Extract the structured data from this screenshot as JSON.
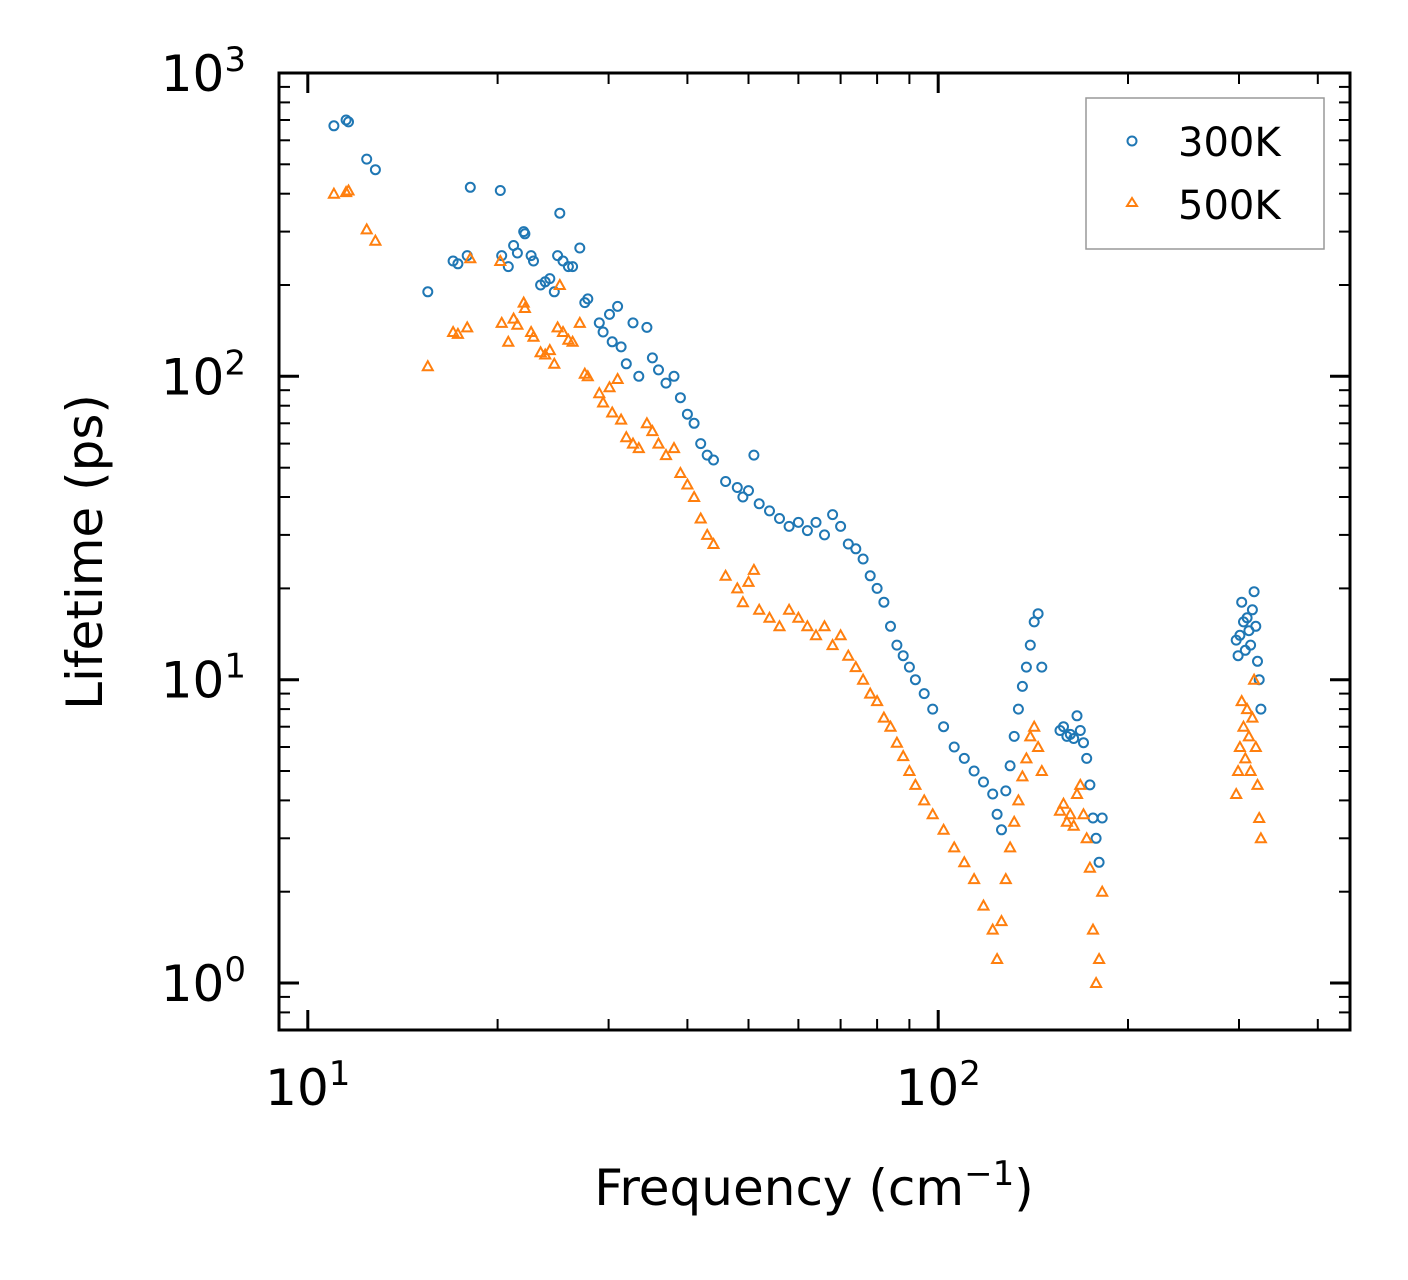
{
  "chart_data": {
    "type": "scatter",
    "title": "",
    "xlabel": "Frequency (cm",
    "xlabel_sup": "−1",
    "xlabel_end": ")",
    "ylabel": "Lifetime (ps)",
    "xscale": "log",
    "yscale": "log",
    "xlim": [
      9,
      450
    ],
    "ylim": [
      0.7,
      1000
    ],
    "x_ticks": [
      {
        "value": 10,
        "base": "10",
        "exp": "1"
      },
      {
        "value": 100,
        "base": "10",
        "exp": "2"
      }
    ],
    "y_ticks": [
      {
        "value": 1,
        "base": "10",
        "exp": "0"
      },
      {
        "value": 10,
        "base": "10",
        "exp": "1"
      },
      {
        "value": 100,
        "base": "10",
        "exp": "2"
      },
      {
        "value": 1000,
        "base": "10",
        "exp": "3"
      }
    ],
    "legend_position": "top-right",
    "series": [
      {
        "name": "300K",
        "marker": "circle",
        "color": "#1f77b4",
        "points": [
          [
            11.0,
            670
          ],
          [
            11.5,
            700
          ],
          [
            11.6,
            690
          ],
          [
            12.4,
            520
          ],
          [
            12.8,
            480
          ],
          [
            15.5,
            190
          ],
          [
            17.0,
            240
          ],
          [
            17.3,
            235
          ],
          [
            17.9,
            250
          ],
          [
            18.1,
            420
          ],
          [
            20.2,
            410
          ],
          [
            20.3,
            250
          ],
          [
            20.8,
            230
          ],
          [
            21.2,
            270
          ],
          [
            21.5,
            255
          ],
          [
            22.0,
            300
          ],
          [
            22.1,
            295
          ],
          [
            22.6,
            250
          ],
          [
            22.8,
            240
          ],
          [
            23.4,
            200
          ],
          [
            23.8,
            205
          ],
          [
            24.2,
            210
          ],
          [
            24.6,
            190
          ],
          [
            24.9,
            250
          ],
          [
            25.1,
            345
          ],
          [
            25.4,
            240
          ],
          [
            25.9,
            230
          ],
          [
            26.3,
            230
          ],
          [
            27.0,
            265
          ],
          [
            27.5,
            175
          ],
          [
            27.8,
            180
          ],
          [
            29.0,
            150
          ],
          [
            29.4,
            140
          ],
          [
            30.1,
            160
          ],
          [
            30.4,
            130
          ],
          [
            31.0,
            170
          ],
          [
            31.4,
            125
          ],
          [
            32.0,
            110
          ],
          [
            32.8,
            150
          ],
          [
            33.5,
            100
          ],
          [
            34.5,
            145
          ],
          [
            35.2,
            115
          ],
          [
            36.0,
            105
          ],
          [
            37.0,
            95
          ],
          [
            38.1,
            100
          ],
          [
            39.0,
            85
          ],
          [
            40.0,
            75
          ],
          [
            41.0,
            70
          ],
          [
            42.0,
            60
          ],
          [
            43.0,
            55
          ],
          [
            44.0,
            53
          ],
          [
            46.0,
            45
          ],
          [
            48.0,
            43
          ],
          [
            49.0,
            40
          ],
          [
            50.0,
            42
          ],
          [
            51.0,
            55
          ],
          [
            52.0,
            38
          ],
          [
            54.0,
            36
          ],
          [
            56.0,
            34
          ],
          [
            58.0,
            32
          ],
          [
            60.0,
            33
          ],
          [
            62.0,
            31
          ],
          [
            64.0,
            33
          ],
          [
            66.0,
            30
          ],
          [
            68.0,
            35
          ],
          [
            70.0,
            32
          ],
          [
            72.0,
            28
          ],
          [
            74.0,
            27
          ],
          [
            76.0,
            25
          ],
          [
            78.0,
            22
          ],
          [
            80.0,
            20
          ],
          [
            82.0,
            18
          ],
          [
            84.0,
            15
          ],
          [
            86.0,
            13
          ],
          [
            88.0,
            12
          ],
          [
            90.0,
            11
          ],
          [
            92.0,
            10
          ],
          [
            95.0,
            9
          ],
          [
            98.0,
            8
          ],
          [
            102.0,
            7
          ],
          [
            106.0,
            6
          ],
          [
            110.0,
            5.5
          ],
          [
            114.0,
            5.0
          ],
          [
            118.0,
            4.6
          ],
          [
            122.0,
            4.2
          ],
          [
            124.0,
            3.6
          ],
          [
            126.0,
            3.2
          ],
          [
            128.0,
            4.3
          ],
          [
            130.0,
            5.2
          ],
          [
            132.0,
            6.5
          ],
          [
            134.0,
            8.0
          ],
          [
            136.0,
            9.5
          ],
          [
            138.0,
            11.0
          ],
          [
            140.0,
            13.0
          ],
          [
            142.0,
            15.5
          ],
          [
            144.0,
            16.5
          ],
          [
            146.0,
            11.0
          ],
          [
            156.0,
            6.8
          ],
          [
            158.0,
            7.0
          ],
          [
            160.0,
            6.5
          ],
          [
            162.0,
            6.6
          ],
          [
            164.0,
            6.4
          ],
          [
            166.0,
            7.6
          ],
          [
            168.0,
            6.8
          ],
          [
            170.0,
            6.2
          ],
          [
            172.0,
            5.5
          ],
          [
            174.0,
            4.5
          ],
          [
            176.0,
            3.5
          ],
          [
            178.0,
            3.0
          ],
          [
            180.0,
            2.5
          ],
          [
            182.0,
            3.5
          ],
          [
            297.0,
            13.5
          ],
          [
            299.0,
            12.0
          ],
          [
            301.0,
            14.0
          ],
          [
            303.0,
            18.0
          ],
          [
            305.0,
            15.5
          ],
          [
            307.0,
            12.5
          ],
          [
            309.0,
            16.0
          ],
          [
            311.0,
            14.5
          ],
          [
            313.0,
            13.0
          ],
          [
            315.0,
            17.0
          ],
          [
            317.0,
            19.5
          ],
          [
            319.0,
            15.0
          ],
          [
            321.0,
            11.5
          ],
          [
            323.0,
            10.0
          ],
          [
            325.0,
            8.0
          ]
        ]
      },
      {
        "name": "500K",
        "marker": "triangle",
        "color": "#ff7f0e",
        "points": [
          [
            11.0,
            400
          ],
          [
            11.5,
            405
          ],
          [
            11.6,
            410
          ],
          [
            12.4,
            305
          ],
          [
            12.8,
            280
          ],
          [
            15.5,
            108
          ],
          [
            17.0,
            140
          ],
          [
            17.3,
            138
          ],
          [
            17.9,
            145
          ],
          [
            18.1,
            245
          ],
          [
            20.2,
            240
          ],
          [
            20.3,
            150
          ],
          [
            20.8,
            130
          ],
          [
            21.2,
            155
          ],
          [
            21.5,
            148
          ],
          [
            22.0,
            175
          ],
          [
            22.1,
            168
          ],
          [
            22.6,
            140
          ],
          [
            22.8,
            135
          ],
          [
            23.4,
            120
          ],
          [
            23.8,
            118
          ],
          [
            24.2,
            122
          ],
          [
            24.6,
            110
          ],
          [
            24.9,
            145
          ],
          [
            25.1,
            200
          ],
          [
            25.4,
            140
          ],
          [
            25.9,
            132
          ],
          [
            26.3,
            130
          ],
          [
            27.0,
            150
          ],
          [
            27.5,
            102
          ],
          [
            27.8,
            100
          ],
          [
            29.0,
            88
          ],
          [
            29.4,
            82
          ],
          [
            30.1,
            92
          ],
          [
            30.4,
            76
          ],
          [
            31.0,
            98
          ],
          [
            31.4,
            72
          ],
          [
            32.0,
            63
          ],
          [
            32.8,
            60
          ],
          [
            33.5,
            58
          ],
          [
            34.5,
            70
          ],
          [
            35.2,
            66
          ],
          [
            36.0,
            60
          ],
          [
            37.0,
            55
          ],
          [
            38.1,
            58
          ],
          [
            39.0,
            48
          ],
          [
            40.0,
            44
          ],
          [
            41.0,
            40
          ],
          [
            42.0,
            34
          ],
          [
            43.0,
            30
          ],
          [
            44.0,
            28
          ],
          [
            46.0,
            22
          ],
          [
            48.0,
            20
          ],
          [
            49.0,
            18
          ],
          [
            50.0,
            21
          ],
          [
            51.0,
            23
          ],
          [
            52.0,
            17
          ],
          [
            54.0,
            16
          ],
          [
            56.0,
            15
          ],
          [
            58.0,
            17
          ],
          [
            60.0,
            16
          ],
          [
            62.0,
            15
          ],
          [
            64.0,
            14
          ],
          [
            66.0,
            15
          ],
          [
            68.0,
            13
          ],
          [
            70.0,
            14
          ],
          [
            72.0,
            12
          ],
          [
            74.0,
            11
          ],
          [
            76.0,
            10
          ],
          [
            78.0,
            9
          ],
          [
            80.0,
            8.5
          ],
          [
            82.0,
            7.5
          ],
          [
            84.0,
            7.0
          ],
          [
            86.0,
            6.2
          ],
          [
            88.0,
            5.6
          ],
          [
            90.0,
            5.0
          ],
          [
            92.0,
            4.5
          ],
          [
            95.0,
            4.0
          ],
          [
            98.0,
            3.6
          ],
          [
            102.0,
            3.2
          ],
          [
            106.0,
            2.8
          ],
          [
            110.0,
            2.5
          ],
          [
            114.0,
            2.2
          ],
          [
            118.0,
            1.8
          ],
          [
            122.0,
            1.5
          ],
          [
            124.0,
            1.2
          ],
          [
            126.0,
            1.6
          ],
          [
            128.0,
            2.2
          ],
          [
            130.0,
            2.8
          ],
          [
            132.0,
            3.4
          ],
          [
            134.0,
            4.0
          ],
          [
            136.0,
            4.8
          ],
          [
            138.0,
            5.5
          ],
          [
            140.0,
            6.5
          ],
          [
            142.0,
            7.0
          ],
          [
            144.0,
            6.0
          ],
          [
            146.0,
            5.0
          ],
          [
            156.0,
            3.7
          ],
          [
            158.0,
            3.9
          ],
          [
            160.0,
            3.4
          ],
          [
            162.0,
            3.6
          ],
          [
            164.0,
            3.3
          ],
          [
            166.0,
            4.2
          ],
          [
            168.0,
            4.5
          ],
          [
            170.0,
            3.6
          ],
          [
            172.0,
            3.0
          ],
          [
            174.0,
            2.4
          ],
          [
            176.0,
            1.5
          ],
          [
            178.0,
            1.0
          ],
          [
            180.0,
            1.2
          ],
          [
            182.0,
            2.0
          ],
          [
            297.0,
            4.2
          ],
          [
            299.0,
            5.0
          ],
          [
            301.0,
            6.0
          ],
          [
            303.0,
            8.5
          ],
          [
            305.0,
            7.0
          ],
          [
            307.0,
            5.5
          ],
          [
            309.0,
            8.0
          ],
          [
            311.0,
            6.5
          ],
          [
            313.0,
            5.0
          ],
          [
            315.0,
            7.5
          ],
          [
            317.0,
            10.0
          ],
          [
            319.0,
            6.0
          ],
          [
            321.0,
            4.5
          ],
          [
            323.0,
            3.5
          ],
          [
            325.0,
            3.0
          ]
        ]
      }
    ]
  }
}
